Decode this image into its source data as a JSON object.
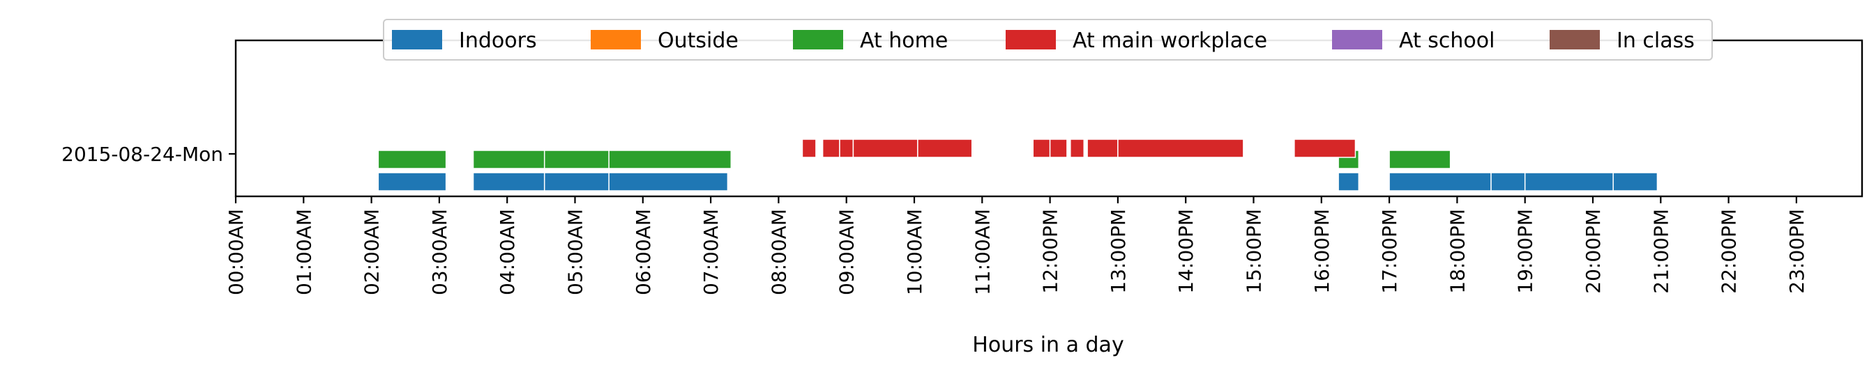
{
  "chart_data": {
    "type": "bar",
    "orientation": "horizontal-timeline",
    "title": "",
    "xlabel": "Hours in a day",
    "ylabel": "",
    "xlim": [
      0,
      24
    ],
    "x_tick_values": [
      0,
      1,
      2,
      3,
      4,
      5,
      6,
      7,
      8,
      9,
      10,
      11,
      12,
      13,
      14,
      15,
      16,
      17,
      18,
      19,
      20,
      21,
      22,
      23
    ],
    "x_tick_labels": [
      "00:00AM",
      "01:00AM",
      "02:00AM",
      "03:00AM",
      "04:00AM",
      "05:00AM",
      "06:00AM",
      "07:00AM",
      "08:00AM",
      "09:00AM",
      "10:00AM",
      "11:00AM",
      "12:00PM",
      "13:00PM",
      "14:00PM",
      "15:00PM",
      "16:00PM",
      "17:00PM",
      "18:00PM",
      "19:00PM",
      "20:00PM",
      "21:00PM",
      "22:00PM",
      "23:00PM"
    ],
    "categories": [
      "2015-08-24-Mon"
    ],
    "legend_position": "top-center",
    "grid": false,
    "series": [
      {
        "name": "Indoors",
        "color": "#1f77b4",
        "intervals": [
          [
            2.1,
            3.1
          ],
          [
            3.5,
            4.55
          ],
          [
            4.55,
            5.5
          ],
          [
            5.5,
            7.25
          ],
          [
            16.25,
            16.55
          ],
          [
            17.0,
            18.5
          ],
          [
            18.5,
            19.0
          ],
          [
            19.0,
            20.3
          ],
          [
            20.3,
            20.95
          ]
        ]
      },
      {
        "name": "Outside",
        "color": "#ff7f0e",
        "intervals": []
      },
      {
        "name": "At home",
        "color": "#2ca02c",
        "intervals": [
          [
            2.1,
            3.1
          ],
          [
            3.5,
            4.55
          ],
          [
            4.55,
            5.5
          ],
          [
            5.5,
            7.3
          ],
          [
            16.25,
            16.55
          ],
          [
            17.0,
            17.9
          ]
        ]
      },
      {
        "name": "At main workplace",
        "color": "#d62728",
        "intervals": [
          [
            8.35,
            8.55
          ],
          [
            8.65,
            8.9
          ],
          [
            8.9,
            9.1
          ],
          [
            9.1,
            10.05
          ],
          [
            10.05,
            10.85
          ],
          [
            11.75,
            12.0
          ],
          [
            12.0,
            12.25
          ],
          [
            12.3,
            12.5
          ],
          [
            12.55,
            13.0
          ],
          [
            13.0,
            14.85
          ],
          [
            15.6,
            16.5
          ]
        ]
      },
      {
        "name": "At school",
        "color": "#9467bd",
        "intervals": []
      },
      {
        "name": "In class",
        "color": "#8c564b",
        "intervals": []
      }
    ]
  }
}
